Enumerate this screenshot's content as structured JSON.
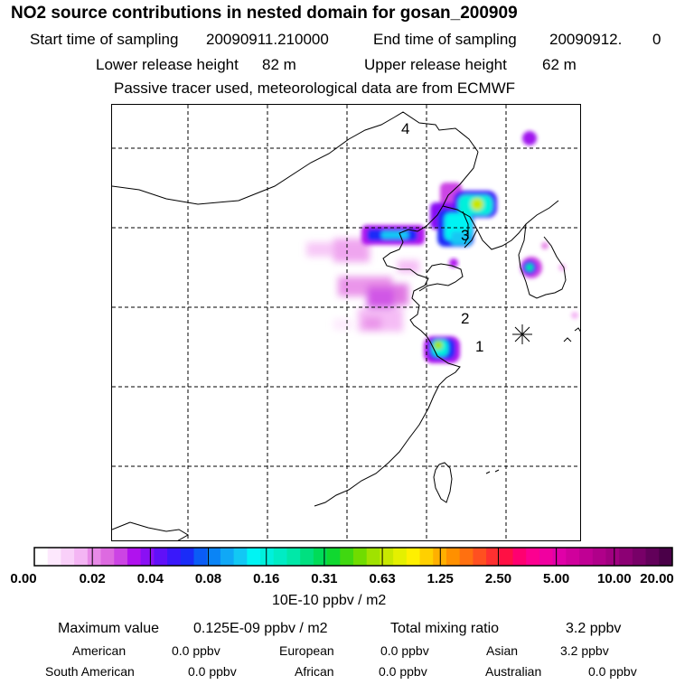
{
  "title": "NO2 source contributions in nested domain for gosan_200909",
  "sampling": {
    "start_label": "Start time of sampling",
    "start_value": "20090911.210000",
    "end_label": "End time of sampling",
    "end_value": "20090912.",
    "end_extra": "0"
  },
  "release": {
    "lower_label": "Lower release height",
    "lower_value": "82 m",
    "upper_label": "Upper release height",
    "upper_value": "62 m"
  },
  "note": "Passive tracer used, meteorological data are from ECMWF",
  "map": {
    "region_labels": [
      "1",
      "2",
      "3",
      "4"
    ],
    "receptor_marker": "star-marker",
    "grid": "dashed"
  },
  "colorbar": {
    "ticks": [
      "0.00",
      "0.02",
      "0.04",
      "0.08",
      "0.16",
      "0.31",
      "0.63",
      "1.25",
      "2.50",
      "5.00",
      "10.00",
      "20.00"
    ],
    "colors": [
      "#ffffff",
      "#fde8fd",
      "#f9d0f9",
      "#f4b5f4",
      "#e88ae8",
      "#dd6ae0",
      "#cc44e4",
      "#b012ee",
      "#8a10f4",
      "#6010f8",
      "#3a18fa",
      "#1a2cf8",
      "#0a5cf6",
      "#0a84f6",
      "#10a8f6",
      "#12c8f4",
      "#00f4f4",
      "#00f0dc",
      "#00ecc4",
      "#00e8a8",
      "#00e080",
      "#00dc58",
      "#10d830",
      "#40d810",
      "#70dc00",
      "#a0e200",
      "#c8e800",
      "#e4f000",
      "#fff000",
      "#ffd000",
      "#ffb000",
      "#ff9000",
      "#ff7010",
      "#ff5020",
      "#ff3030",
      "#ff1044",
      "#ff0070",
      "#fc0090",
      "#f000a0",
      "#e000a8",
      "#d0009c",
      "#c00094",
      "#b0008a",
      "#a00080",
      "#8c0074",
      "#780068",
      "#62005a",
      "#4a0048"
    ],
    "unit": "10E-10 ppbv / m2"
  },
  "stats": {
    "max_label": "Maximum value",
    "max_value": "0.125E-09 ppbv / m2",
    "total_label": "Total mixing ratio",
    "total_value": "3.2 ppbv"
  },
  "regions": [
    {
      "name": "American",
      "value": "0.0 ppbv"
    },
    {
      "name": "European",
      "value": "0.0 ppbv"
    },
    {
      "name": "Asian",
      "value": "3.2 ppbv"
    },
    {
      "name": "South American",
      "value": "0.0 ppbv"
    },
    {
      "name": "African",
      "value": "0.0 ppbv"
    },
    {
      "name": "Australian",
      "value": "0.0 ppbv"
    }
  ]
}
